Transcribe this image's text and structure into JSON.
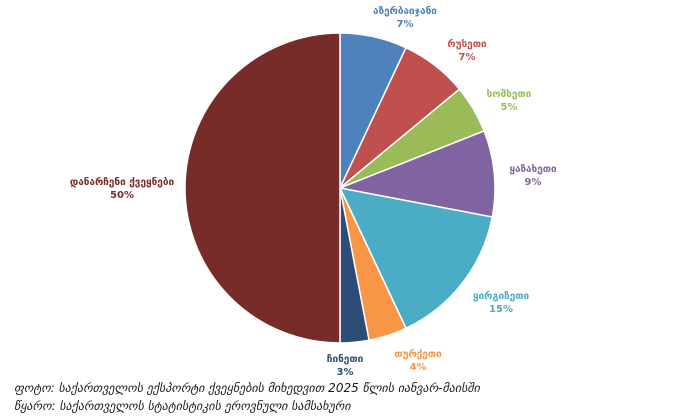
{
  "chart_data": {
    "type": "pie",
    "title": "",
    "legend": "none",
    "slices": [
      {
        "label": "აზერბაიჯანი",
        "percent_label": "7%",
        "value": 7,
        "color": "#4f81bd"
      },
      {
        "label": "რუსეთი",
        "percent_label": "7%",
        "value": 7,
        "color": "#c0504d"
      },
      {
        "label": "სომხეთი",
        "percent_label": "5%",
        "value": 5,
        "color": "#9bbb59"
      },
      {
        "label": "ყაზახეთი",
        "percent_label": "9%",
        "value": 9,
        "color": "#8064a2"
      },
      {
        "label": "ყირგიზეთი",
        "percent_label": "15%",
        "value": 15,
        "color": "#4bacc6"
      },
      {
        "label": "თურქეთი",
        "percent_label": "4%",
        "value": 4,
        "color": "#f79646"
      },
      {
        "label": "ჩინეთი",
        "percent_label": "3%",
        "value": 3,
        "color": "#2c4d75"
      },
      {
        "label": "დანარჩენი ქვეყნები",
        "percent_label": "50%",
        "value": 50,
        "color": "#772c2a"
      }
    ]
  },
  "captions": {
    "photo": "ფოტო: საქართველოს ექსპორტი ქვეყნების მიხედვით 2025 წლის იანვარ-მაისში",
    "source": "წყარო: საქართველოს სტატისტიკის ეროვნული სამსახური"
  }
}
